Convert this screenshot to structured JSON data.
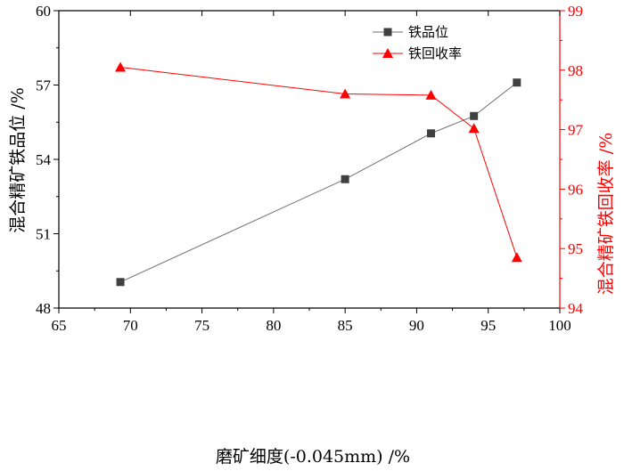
{
  "chart_data": {
    "type": "line",
    "x": [
      69.3,
      85,
      91,
      94,
      97
    ],
    "xlabel": "磨矿细度(-0.045mm) /%",
    "xlim": [
      65,
      100
    ],
    "xticks": [
      "65",
      "70",
      "75",
      "80",
      "85",
      "90",
      "95",
      "100"
    ],
    "y_left": {
      "label": "混合精矿铁品位 /%",
      "lim": [
        48,
        60
      ],
      "ticks": [
        "48",
        "51",
        "54",
        "57",
        "60"
      ],
      "color": "#000000"
    },
    "y_right": {
      "label": "混合精矿铁回收率 /%",
      "lim": [
        94,
        99
      ],
      "ticks": [
        "94",
        "95",
        "96",
        "97",
        "98",
        "99"
      ],
      "color": "#ff0000"
    },
    "series": [
      {
        "name": "铁品位",
        "axis": "left",
        "marker": "square",
        "color": "#404040",
        "line_color": "#6e6e6e",
        "values": [
          49.05,
          53.2,
          55.05,
          55.75,
          57.1
        ]
      },
      {
        "name": "铁回收率",
        "axis": "right",
        "marker": "triangle",
        "color": "#ff0000",
        "line_color": "#ff0000",
        "values": [
          98.05,
          97.6,
          97.58,
          97.02,
          94.85
        ]
      }
    ],
    "legend_position": "top-center",
    "grid": false
  }
}
